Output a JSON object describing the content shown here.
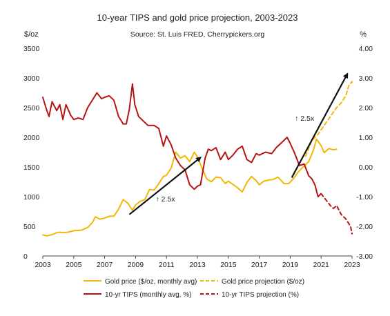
{
  "chart_data": {
    "type": "line",
    "title": "10-year TIPS and gold price projection, 2003-2023",
    "subtitle": "Source: St. Luis FRED, Cherrypickers.org",
    "left_axis_unit": "$/oz",
    "right_axis_unit": "%",
    "x_range": [
      2003,
      2023
    ],
    "x_ticks": [
      "2003",
      "2005",
      "2007",
      "2009",
      "2011",
      "2013",
      "2015",
      "2017",
      "2019",
      "2021",
      "2023"
    ],
    "y_left_range": [
      0,
      3500
    ],
    "y_left_ticks": [
      "0",
      "500",
      "1000",
      "1500",
      "2000",
      "2500",
      "3000",
      "3500"
    ],
    "y_right_range": [
      -3,
      4
    ],
    "y_right_ticks": [
      "-3.00",
      "-2.00",
      "-1.00",
      "0.00",
      "1.00",
      "2.00",
      "3.00",
      "4.00"
    ],
    "grid": false,
    "legend_position": "bottom",
    "colors": {
      "gold": "#F2B705",
      "tips": "#B81313",
      "arrow": "#111111",
      "axis": "#444444"
    },
    "series": [
      {
        "name": "Gold price ($/oz, monthly avg)",
        "axis": "left",
        "style": "solid",
        "color": "#F2B705",
        "points": [
          [
            2003.0,
            355
          ],
          [
            2003.3,
            340
          ],
          [
            2003.6,
            360
          ],
          [
            2004.0,
            400
          ],
          [
            2004.3,
            395
          ],
          [
            2004.6,
            400
          ],
          [
            2005.0,
            425
          ],
          [
            2005.5,
            435
          ],
          [
            2005.9,
            480
          ],
          [
            2006.2,
            560
          ],
          [
            2006.4,
            660
          ],
          [
            2006.7,
            620
          ],
          [
            2007.0,
            640
          ],
          [
            2007.3,
            670
          ],
          [
            2007.6,
            670
          ],
          [
            2007.9,
            790
          ],
          [
            2008.2,
            950
          ],
          [
            2008.5,
            890
          ],
          [
            2008.8,
            770
          ],
          [
            2009.0,
            860
          ],
          [
            2009.3,
            920
          ],
          [
            2009.6,
            950
          ],
          [
            2009.9,
            1120
          ],
          [
            2010.2,
            1110
          ],
          [
            2010.5,
            1220
          ],
          [
            2010.8,
            1340
          ],
          [
            2011.0,
            1360
          ],
          [
            2011.3,
            1480
          ],
          [
            2011.6,
            1750
          ],
          [
            2011.9,
            1650
          ],
          [
            2012.2,
            1690
          ],
          [
            2012.5,
            1590
          ],
          [
            2012.8,
            1750
          ],
          [
            2013.0,
            1670
          ],
          [
            2013.3,
            1480
          ],
          [
            2013.6,
            1300
          ],
          [
            2013.9,
            1250
          ],
          [
            2014.2,
            1330
          ],
          [
            2014.5,
            1320
          ],
          [
            2014.8,
            1220
          ],
          [
            2015.0,
            1260
          ],
          [
            2015.5,
            1170
          ],
          [
            2015.9,
            1080
          ],
          [
            2016.2,
            1240
          ],
          [
            2016.5,
            1340
          ],
          [
            2016.8,
            1270
          ],
          [
            2017.0,
            1200
          ],
          [
            2017.3,
            1260
          ],
          [
            2017.6,
            1280
          ],
          [
            2017.9,
            1290
          ],
          [
            2018.2,
            1330
          ],
          [
            2018.6,
            1220
          ],
          [
            2018.9,
            1220
          ],
          [
            2019.2,
            1300
          ],
          [
            2019.5,
            1410
          ],
          [
            2019.8,
            1490
          ],
          [
            2020.2,
            1590
          ],
          [
            2020.5,
            1780
          ],
          [
            2020.7,
            1970
          ],
          [
            2021.0,
            1860
          ],
          [
            2021.2,
            1740
          ],
          [
            2021.5,
            1810
          ],
          [
            2021.8,
            1790
          ],
          [
            2022.0,
            1800
          ]
        ]
      },
      {
        "name": "Gold price projection ($/oz)",
        "axis": "left",
        "style": "dashed",
        "color": "#F2B705",
        "points": [
          [
            2020.0,
            1680
          ],
          [
            2020.4,
            1950
          ],
          [
            2020.8,
            2050
          ],
          [
            2021.2,
            2200
          ],
          [
            2021.6,
            2350
          ],
          [
            2022.0,
            2500
          ],
          [
            2022.3,
            2580
          ],
          [
            2022.6,
            2700
          ],
          [
            2022.8,
            2880
          ],
          [
            2023.0,
            2940
          ],
          [
            2022.9,
            2880
          ]
        ]
      },
      {
        "name": "10-yr TIPS (monthly avg, %)",
        "axis": "right",
        "style": "solid",
        "color": "#B81313",
        "points": [
          [
            2003.0,
            2.35
          ],
          [
            2003.2,
            2.0
          ],
          [
            2003.4,
            1.7
          ],
          [
            2003.6,
            2.2
          ],
          [
            2003.9,
            1.9
          ],
          [
            2004.1,
            2.1
          ],
          [
            2004.3,
            1.6
          ],
          [
            2004.5,
            2.1
          ],
          [
            2004.8,
            1.75
          ],
          [
            2005.0,
            1.6
          ],
          [
            2005.3,
            1.65
          ],
          [
            2005.6,
            1.6
          ],
          [
            2005.9,
            2.0
          ],
          [
            2006.2,
            2.25
          ],
          [
            2006.5,
            2.5
          ],
          [
            2006.8,
            2.3
          ],
          [
            2007.0,
            2.35
          ],
          [
            2007.3,
            2.4
          ],
          [
            2007.6,
            2.25
          ],
          [
            2007.9,
            1.7
          ],
          [
            2008.2,
            1.45
          ],
          [
            2008.4,
            1.45
          ],
          [
            2008.6,
            1.95
          ],
          [
            2008.8,
            2.8
          ],
          [
            2008.95,
            2.1
          ],
          [
            2009.2,
            1.7
          ],
          [
            2009.5,
            1.55
          ],
          [
            2009.8,
            1.4
          ],
          [
            2010.2,
            1.4
          ],
          [
            2010.5,
            1.3
          ],
          [
            2010.8,
            0.7
          ],
          [
            2011.0,
            1.05
          ],
          [
            2011.3,
            0.75
          ],
          [
            2011.6,
            0.3
          ],
          [
            2011.9,
            0.05
          ],
          [
            2012.2,
            -0.1
          ],
          [
            2012.5,
            -0.6
          ],
          [
            2012.8,
            -0.75
          ],
          [
            2013.0,
            -0.65
          ],
          [
            2013.2,
            -0.6
          ],
          [
            2013.5,
            0.3
          ],
          [
            2013.7,
            0.6
          ],
          [
            2013.9,
            0.55
          ],
          [
            2014.2,
            0.65
          ],
          [
            2014.5,
            0.25
          ],
          [
            2014.8,
            0.5
          ],
          [
            2015.0,
            0.25
          ],
          [
            2015.3,
            0.4
          ],
          [
            2015.6,
            0.6
          ],
          [
            2015.9,
            0.7
          ],
          [
            2016.2,
            0.25
          ],
          [
            2016.5,
            0.15
          ],
          [
            2016.8,
            0.45
          ],
          [
            2017.0,
            0.4
          ],
          [
            2017.4,
            0.5
          ],
          [
            2017.8,
            0.45
          ],
          [
            2018.1,
            0.65
          ],
          [
            2018.4,
            0.8
          ],
          [
            2018.8,
            1.0
          ],
          [
            2019.0,
            0.8
          ],
          [
            2019.3,
            0.45
          ],
          [
            2019.6,
            0.05
          ],
          [
            2019.9,
            0.1
          ],
          [
            2020.2,
            -0.3
          ],
          [
            2020.4,
            -0.4
          ],
          [
            2020.6,
            -0.6
          ],
          [
            2020.8,
            -1.0
          ],
          [
            2021.0,
            -0.9
          ]
        ]
      },
      {
        "name": "10-yr TIPS projection (%)",
        "axis": "right",
        "style": "dashed",
        "color": "#B81313",
        "points": [
          [
            2021.0,
            -0.9
          ],
          [
            2021.3,
            -1.1
          ],
          [
            2021.6,
            -1.3
          ],
          [
            2021.8,
            -1.4
          ],
          [
            2022.0,
            -1.3
          ],
          [
            2022.3,
            -1.6
          ],
          [
            2022.6,
            -1.75
          ],
          [
            2022.9,
            -2.0
          ],
          [
            2023.0,
            -2.25
          ]
        ]
      }
    ],
    "annotations": [
      {
        "text": "↑ 2.5x",
        "x": 2010.3,
        "y": 920,
        "axis": "left"
      },
      {
        "text": "↑ 2.5x",
        "x": 2019.3,
        "y": 2280,
        "axis": "left"
      }
    ],
    "arrows": [
      {
        "from": [
          2008.6,
          700
        ],
        "to": [
          2013.2,
          1660
        ],
        "axis": "left"
      },
      {
        "from": [
          2019.1,
          1320
        ],
        "to": [
          2022.7,
          3070
        ],
        "axis": "left"
      }
    ]
  }
}
